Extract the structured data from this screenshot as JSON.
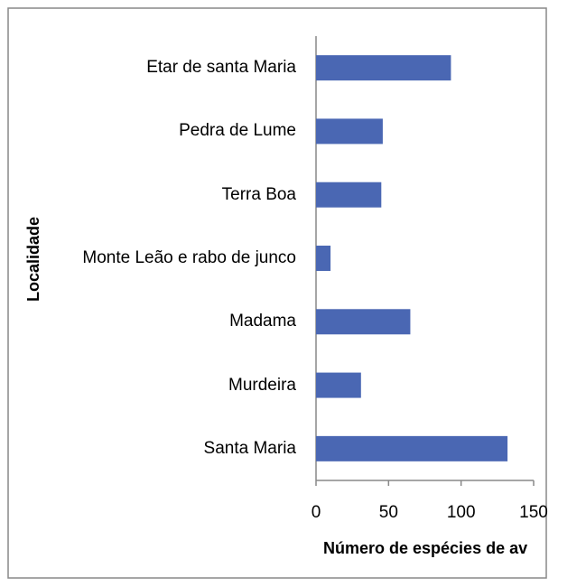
{
  "chart_data": {
    "type": "bar",
    "orientation": "horizontal",
    "xlabel": "Número de espécies de av",
    "ylabel": "Localidade",
    "categories": [
      "Etar de santa Maria",
      "Pedra de Lume",
      "Terra Boa",
      "Monte Leão e rabo de junco",
      "Madama",
      "Murdeira",
      "Santa Maria"
    ],
    "values": [
      93,
      46,
      45,
      10,
      65,
      31,
      132
    ],
    "color": "#4a67b3",
    "xlim": [
      0,
      150
    ],
    "xticks": [
      0,
      50,
      100,
      150
    ],
    "grid": false
  }
}
